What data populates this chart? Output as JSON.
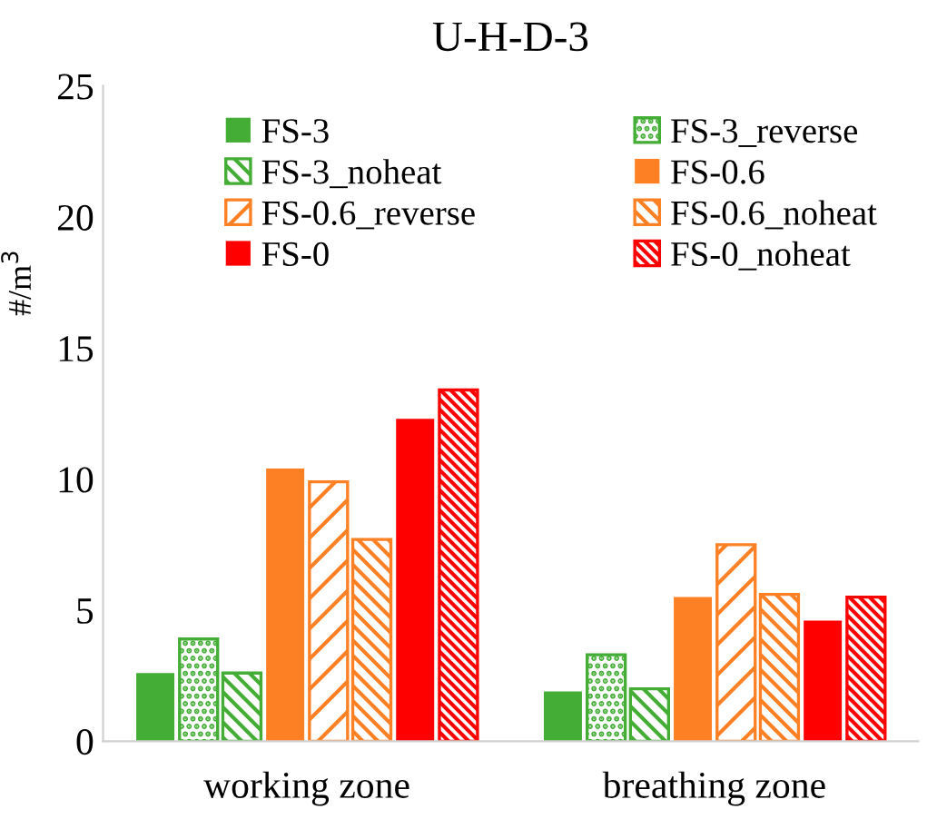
{
  "chart_data": {
    "type": "bar",
    "title": "U-H-D-3",
    "ylabel": "#/m$^{3}$",
    "categories": [
      "working zone",
      "breathing zone"
    ],
    "series": [
      {
        "name": "FS-3",
        "color": "#43ad35",
        "values": [
          2.6,
          1.9
        ]
      },
      {
        "name": "FS-3_reverse",
        "color": "#43ad35",
        "values": [
          3.9,
          3.3
        ]
      },
      {
        "name": "FS-3_noheat",
        "color": "#43ad35",
        "values": [
          2.6,
          2.0
        ]
      },
      {
        "name": "FS-0.6",
        "color": "#fd8024",
        "values": [
          10.4,
          5.5
        ]
      },
      {
        "name": "FS-0.6_reverse",
        "color": "#fd8024",
        "values": [
          9.9,
          7.5
        ]
      },
      {
        "name": "FS-0.6_noheat",
        "color": "#fd8024",
        "values": [
          7.7,
          5.6
        ]
      },
      {
        "name": "FS-0",
        "color": "#ff0000",
        "values": [
          12.3,
          4.6
        ]
      },
      {
        "name": "FS-0_noheat",
        "color": "#ff0000",
        "values": [
          13.4,
          5.5
        ]
      }
    ],
    "ylim": [
      0,
      25
    ],
    "yticks": [
      0,
      5,
      10,
      15,
      20,
      25
    ],
    "grid": false,
    "legend": "top"
  }
}
